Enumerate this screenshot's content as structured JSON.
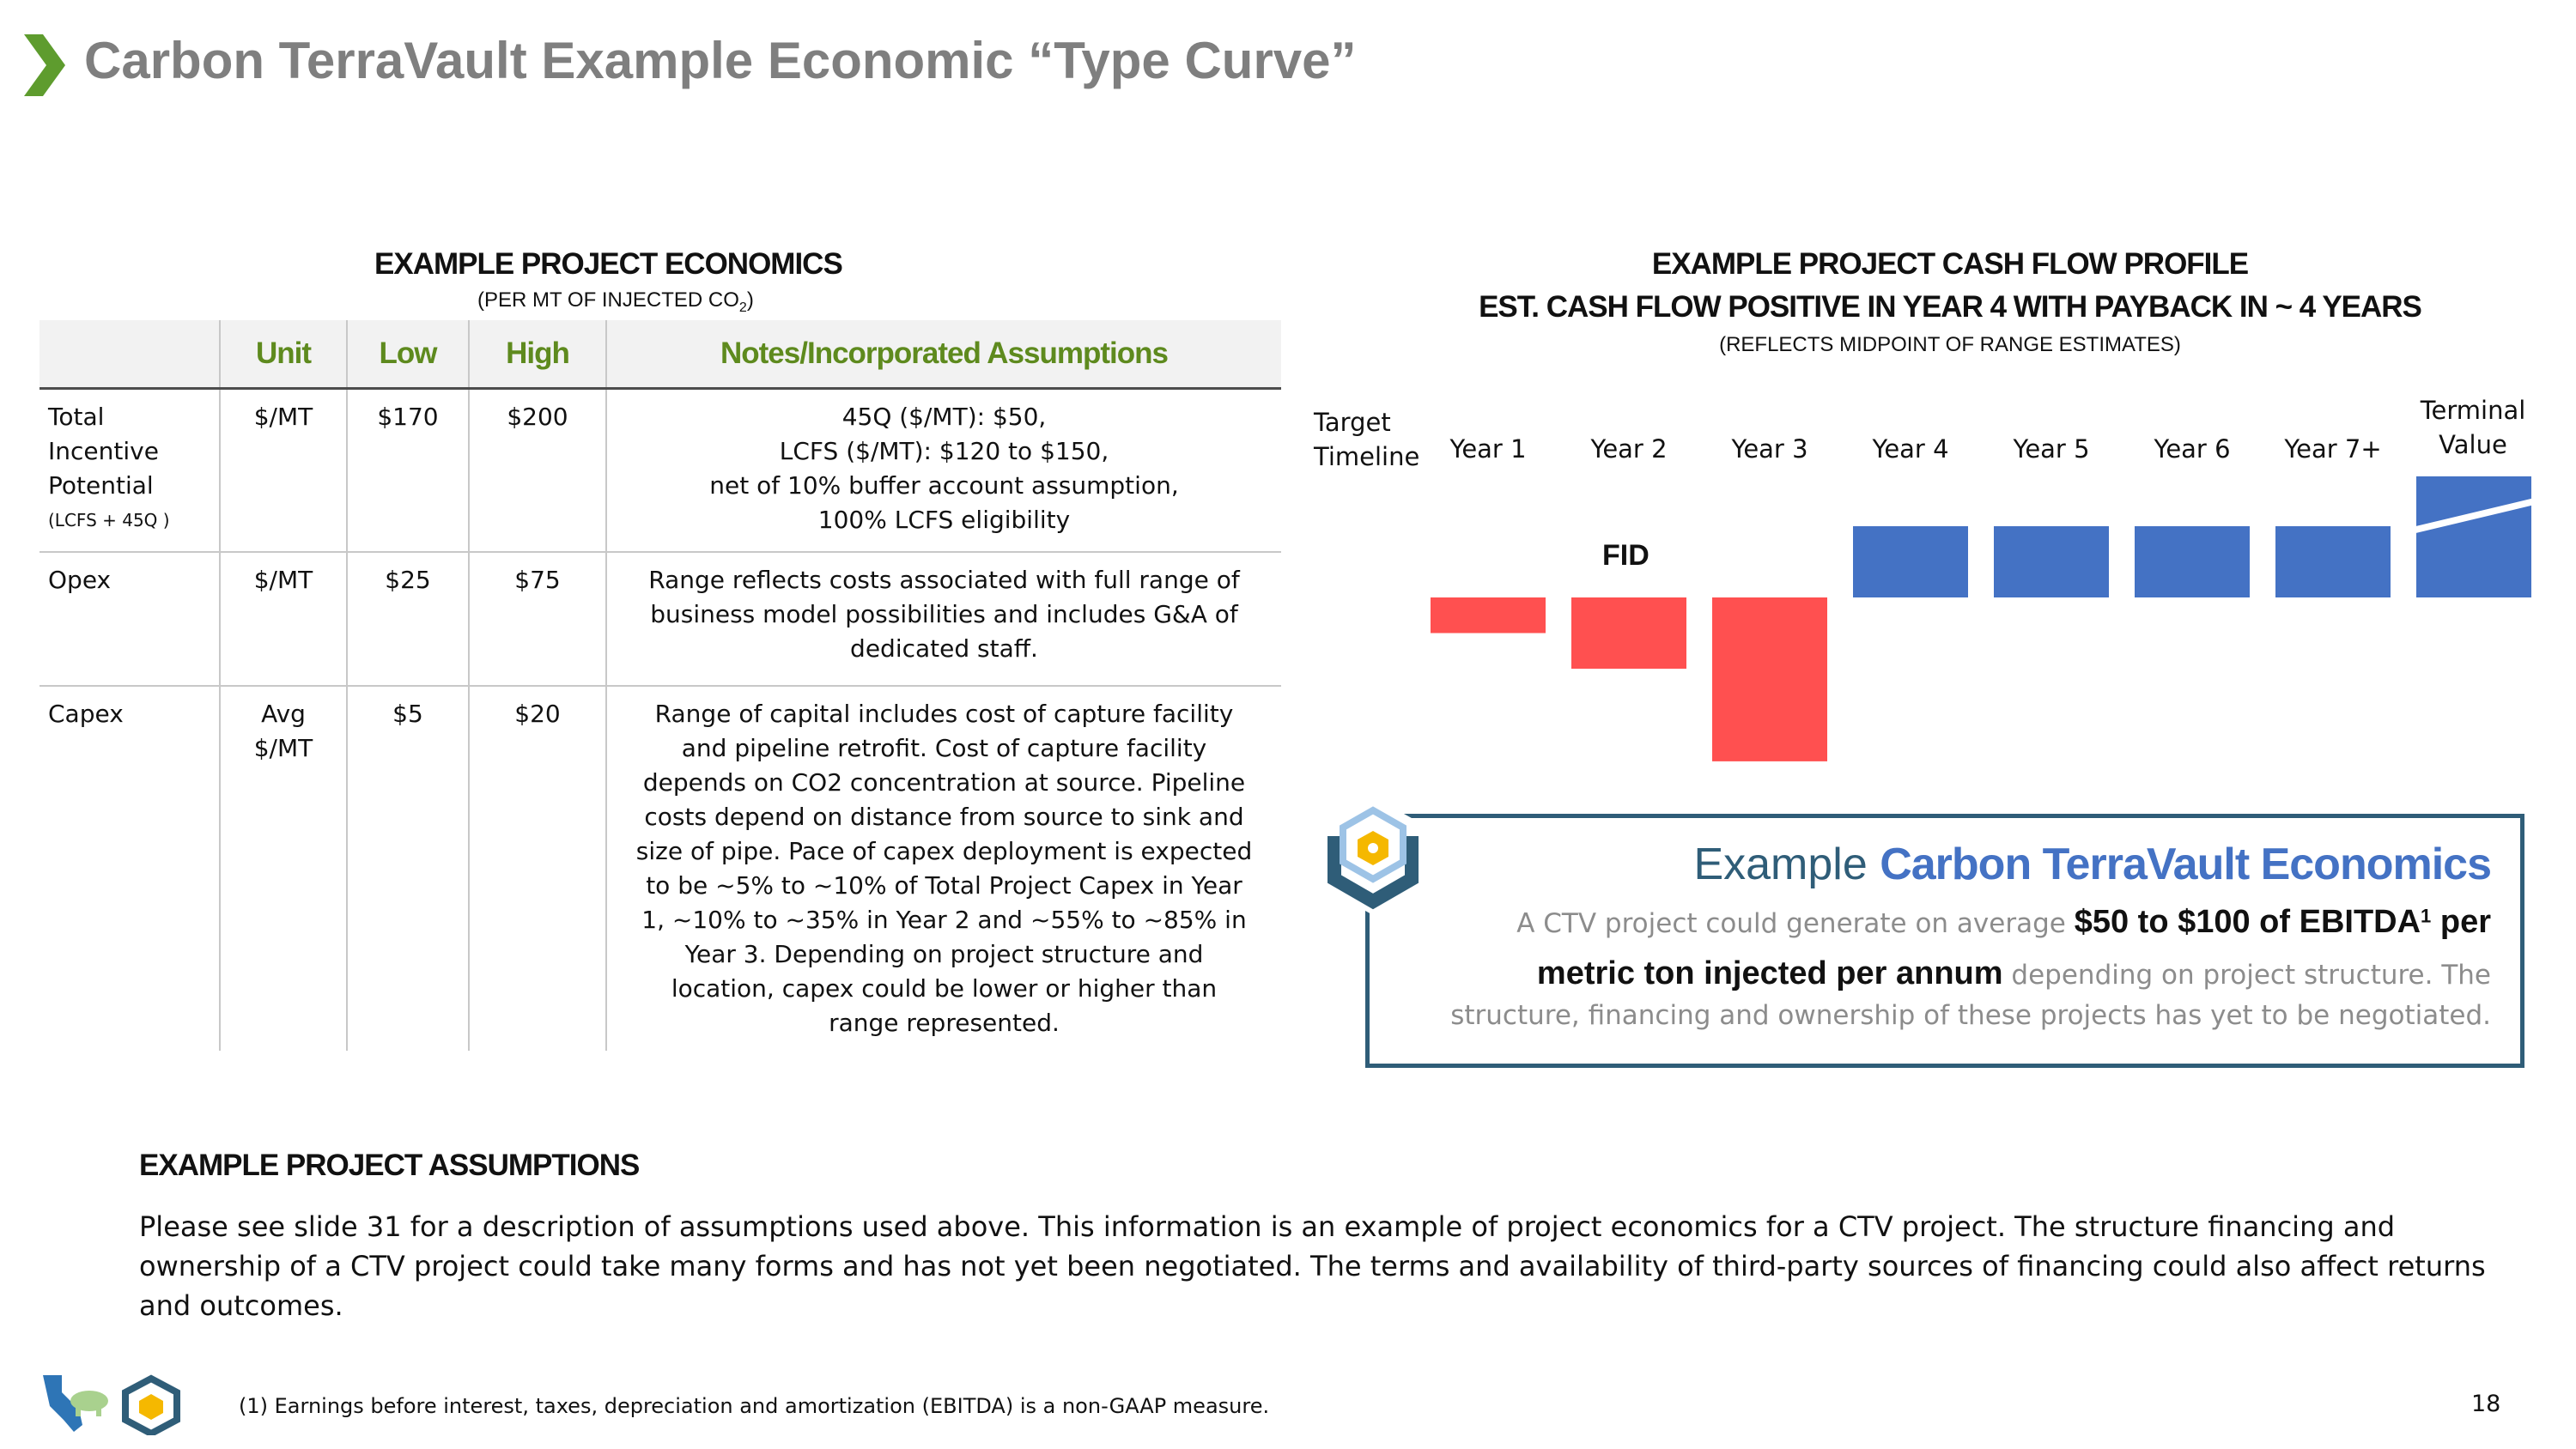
{
  "header": {
    "title": "Carbon TerraVault Example Economic “Type Curve”"
  },
  "economics": {
    "heading": "EXAMPLE PROJECT ECONOMICS",
    "subheading_main": "(PER MT OF INJECTED CO",
    "subheading_sub": "2",
    "subheading_end": ")",
    "columns": [
      "",
      "Unit",
      "Low",
      "High",
      "Notes/Incorporated Assumptions"
    ],
    "rows": [
      {
        "label": "Total Incentive Potential",
        "label_note": "(LCFS + 45Q )",
        "unit": "$/MT",
        "low": "$170",
        "high": "$200",
        "notes": [
          "45Q ($/MT): $50,",
          "LCFS ($/MT): $120 to $150,",
          "net of 10% buffer account assumption,",
          "100% LCFS eligibility"
        ]
      },
      {
        "label": "Opex",
        "label_note": "",
        "unit": "$/MT",
        "low": "$25",
        "high": "$75",
        "notes": [
          "Range reflects costs associated with full range of",
          "business model possibilities and includes G&A of",
          "dedicated staff."
        ]
      },
      {
        "label": "Capex",
        "label_note": "",
        "unit": "Avg $/MT",
        "low": "$5",
        "high": "$20",
        "notes": [
          "Range of capital includes cost of capture facility",
          "and pipeline retrofit. Cost of capture facility",
          "depends on CO2 concentration at source. Pipeline",
          "costs depend on distance from source to sink and",
          "size of pipe. Pace of capex deployment is expected",
          "to be ~5% to ~10% of Total Project Capex in Year",
          "1, ~10% to ~35% in Year 2 and ~55% to ~85% in",
          "Year 3.  Depending on project structure and",
          "location, capex could be lower or higher than",
          "range represented."
        ]
      }
    ]
  },
  "cashflow": {
    "heading1": "EXAMPLE PROJECT CASH FLOW PROFILE",
    "heading2": "EST. CASH FLOW POSITIVE IN YEAR 4 WITH PAYBACK IN ~ 4 YEARS",
    "subheading": "(REFLECTS MIDPOINT OF RANGE ESTIMATES)",
    "timeline_label": "Target Timeline",
    "fid_label": "FID",
    "terminal_label": "Terminal Value",
    "colors": {
      "negative": "#ff5050",
      "positive": "#4472c4"
    }
  },
  "chart_data": {
    "type": "bar",
    "categories": [
      "Year 1",
      "Year 2",
      "Year 3",
      "Year 4",
      "Year 5",
      "Year 6",
      "Year 7+",
      "Terminal Value"
    ],
    "values": [
      -0.5,
      -1.0,
      -2.3,
      1.0,
      1.0,
      1.0,
      1.0,
      1.7
    ],
    "xlabel": "",
    "ylabel": "",
    "annotations": [
      "FID"
    ],
    "grid": false
  },
  "example": {
    "prefix": "Example ",
    "brand": "Carbon TerraVault Economics",
    "line2_pre": "A CTV project could generate on average ",
    "line2_bold": "$50 to $100 of EBITDA",
    "line2_sup": "1",
    "line2_bold_end": " per",
    "line3_bold": "metric ton injected per annum",
    "line3_rest": " depending on project structure. The",
    "line4": "structure, financing and ownership of these projects has yet to be negotiated."
  },
  "assumptions": {
    "heading": "EXAMPLE PROJECT ASSUMPTIONS",
    "text": "Please see slide 31 for a description of assumptions used above.  This information is an example of project economics for a CTV project. The structure financing and ownership of a CTV project could take many forms and has not yet been negotiated. The terms and availability of third-party sources of financing could also affect returns and outcomes."
  },
  "footer": {
    "note": "(1) Earnings before interest, taxes, depreciation and amortization (EBITDA) is a non-GAAP measure.",
    "page": "18"
  }
}
